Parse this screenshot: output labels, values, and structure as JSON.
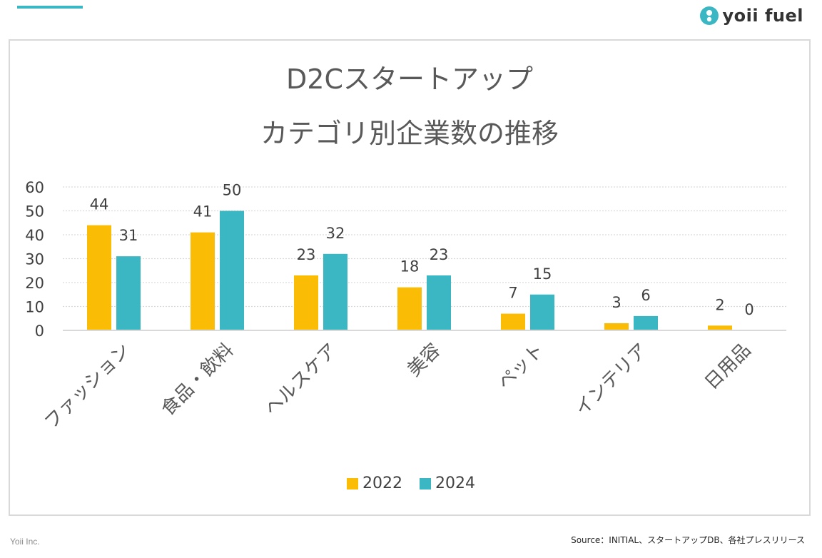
{
  "brand": {
    "name": "yoii fuel",
    "icon": "yoii-logo-icon",
    "accent_color": "#3bb7c4"
  },
  "footer": {
    "company": "Yoii Inc.",
    "source": "Source：INITIAL、スタートアップDB、各社プレスリリース"
  },
  "chart_data": {
    "type": "bar",
    "title_line1": "D2Cスタートアップ",
    "title_line2": "カテゴリ別企業数の推移",
    "categories": [
      "ファッション",
      "食品・飲料",
      "ヘルスケア",
      "美容",
      "ペット",
      "インテリア",
      "日用品"
    ],
    "series": [
      {
        "name": "2022",
        "color": "#fbbc05",
        "values": [
          44,
          41,
          23,
          18,
          7,
          3,
          2
        ]
      },
      {
        "name": "2024",
        "color": "#3bb7c4",
        "values": [
          31,
          50,
          32,
          23,
          15,
          6,
          0
        ]
      }
    ],
    "yticks": [
      0,
      10,
      20,
      30,
      40,
      50,
      60
    ],
    "ylim": [
      0,
      60
    ],
    "grid": true,
    "legend": "bottom",
    "data_labels": true
  }
}
